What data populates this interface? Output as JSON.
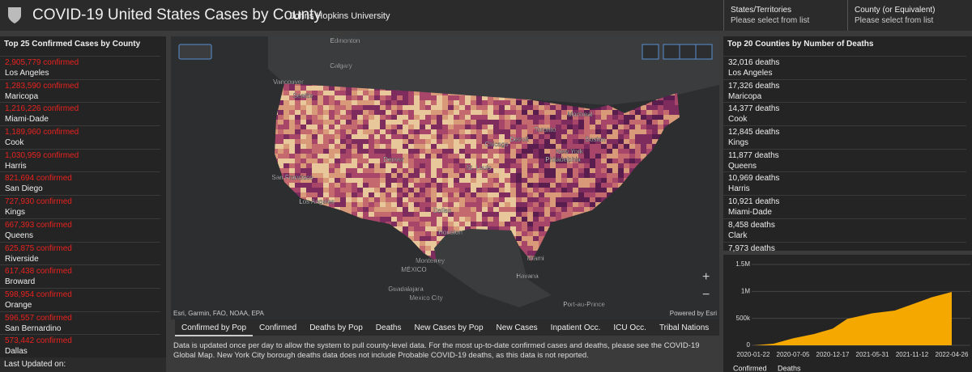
{
  "header": {
    "title": "COVID-19 United States Cases by County",
    "subtitle": "Johns Hopkins University",
    "filters": [
      {
        "label": "States/Territories",
        "placeholder": "Please select from list"
      },
      {
        "label": "County (or Equivalent)",
        "placeholder": "Please select from list"
      }
    ]
  },
  "left_panel": {
    "title": "Top 25 Confirmed Cases by County",
    "items": [
      {
        "value": "2,905,779 confirmed",
        "name": "Los Angeles"
      },
      {
        "value": "1,283,590 confirmed",
        "name": "Maricopa"
      },
      {
        "value": "1,216,226 confirmed",
        "name": "Miami-Dade"
      },
      {
        "value": "1,189,960 confirmed",
        "name": "Cook"
      },
      {
        "value": "1,030,959 confirmed",
        "name": "Harris"
      },
      {
        "value": "821,694 confirmed",
        "name": "San Diego"
      },
      {
        "value": "727,930 confirmed",
        "name": "Kings"
      },
      {
        "value": "667,393 confirmed",
        "name": "Queens"
      },
      {
        "value": "625,875 confirmed",
        "name": "Riverside"
      },
      {
        "value": "617,438 confirmed",
        "name": "Broward"
      },
      {
        "value": "598,954 confirmed",
        "name": "Orange"
      },
      {
        "value": "596,557 confirmed",
        "name": "San Bernardino"
      },
      {
        "value": "573,442 confirmed",
        "name": "Dallas"
      }
    ],
    "footer": "Last Updated on:"
  },
  "map": {
    "labels": [
      "Edmonton",
      "Calgary",
      "Vancouver",
      "Seattle",
      "Toronto",
      "Montreal",
      "Chicago",
      "Detroit",
      "New York",
      "Boston",
      "Philadelphia",
      "Denver",
      "San Francisco",
      "Los Angeles",
      "St. Louis",
      "Dallas",
      "Houston",
      "Monterrey",
      "MÉXICO",
      "Guadalajara",
      "Mexico City",
      "Miami",
      "Havana",
      "Port-au-Prince"
    ],
    "attribution": "Esri, Garmin, FAO, NOAA, EPA",
    "powered": "Powered by Esri"
  },
  "tabs": [
    "Confirmed by Pop",
    "Confirmed",
    "Deaths by Pop",
    "Deaths",
    "New Cases by Pop",
    "New Cases",
    "Inpatient Occ.",
    "ICU Occ.",
    "Tribal Nations"
  ],
  "info": "Data is updated once per day to allow the system to pull county-level data. For the most up-to-date confirmed cases and deaths, please see the COVID-19 Global Map. New York City borough deaths data does not include Probable COVID-19 deaths, as this data is not reported.",
  "right_panel": {
    "title": "Top 20 Counties by Number of Deaths",
    "items": [
      {
        "value": "32,016 deaths",
        "name": "Los Angeles"
      },
      {
        "value": "17,326 deaths",
        "name": "Maricopa"
      },
      {
        "value": "14,377 deaths",
        "name": "Cook"
      },
      {
        "value": "12,845 deaths",
        "name": "Kings"
      },
      {
        "value": "11,877 deaths",
        "name": "Queens"
      },
      {
        "value": "10,969 deaths",
        "name": "Harris"
      },
      {
        "value": "10,921 deaths",
        "name": "Miami-Dade"
      },
      {
        "value": "8,458 deaths",
        "name": "Clark"
      },
      {
        "value": "7,973 deaths",
        "name": null
      }
    ],
    "tabs": [
      "Confirmed",
      "Deaths"
    ]
  },
  "chart_data": {
    "type": "area",
    "color": "#f5a800",
    "x": [
      "2020-01-22",
      "2020-04-15",
      "2020-07-05",
      "2020-10-01",
      "2020-12-17",
      "2021-02-15",
      "2021-05-31",
      "2021-09-01",
      "2021-11-12",
      "2022-02-01",
      "2022-04-26"
    ],
    "values": [
      0,
      30000,
      130000,
      210000,
      310000,
      490000,
      595000,
      645000,
      760000,
      890000,
      990000
    ],
    "xlim": [
      "2020-01-22",
      "2022-04-26"
    ],
    "xticks": [
      "2020-01-22",
      "2020-07-05",
      "2020-12-17",
      "2021-05-31",
      "2021-11-12",
      "2022-04-26"
    ],
    "ylim": [
      0,
      1500000
    ],
    "yticks": [
      0,
      {
        "value": 500000,
        "label": "500k"
      },
      {
        "value": 1000000,
        "label": "1M"
      },
      {
        "value": 1500000,
        "label": "1.5M"
      }
    ],
    "grid": true
  }
}
